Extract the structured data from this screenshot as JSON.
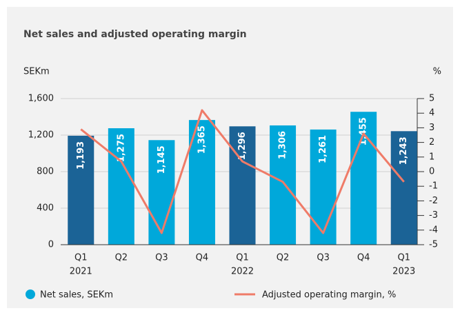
{
  "chart_data": {
    "type": "bar-line",
    "title": "Net sales and adjusted operating margin",
    "y_label": "SEKm",
    "y2_label": "%",
    "categories": [
      "Q1",
      "Q2",
      "Q3",
      "Q4",
      "Q1",
      "Q2",
      "Q3",
      "Q4",
      "Q1"
    ],
    "years": [
      "2021",
      null,
      null,
      null,
      "2022",
      null,
      null,
      null,
      "2023"
    ],
    "series": [
      {
        "name": "Net sales, SEKm",
        "type": "bar",
        "color": "#00a8da",
        "colors": [
          "#1b6396",
          "#00a8da",
          "#00a8da",
          "#00a8da",
          "#1b6396",
          "#00a8da",
          "#00a8da",
          "#00a8da",
          "#1b6396"
        ],
        "values": [
          1193,
          1275,
          1145,
          1365,
          1296,
          1306,
          1261,
          1455,
          1243
        ],
        "value_labels": [
          "1,193",
          "1,275",
          "1,145",
          "1,365",
          "1,296",
          "1,306",
          "1,261",
          "1,455",
          "1,243"
        ]
      },
      {
        "name": "Adjusted operating margin, %",
        "type": "line",
        "axis": "y2",
        "color": "#ef7b68",
        "values": [
          2.9,
          0.7,
          -4.2,
          4.2,
          0.7,
          -0.7,
          -4.2,
          2.6,
          -0.7
        ]
      }
    ],
    "ylim": [
      0,
      1600
    ],
    "yticks": [
      0,
      400,
      800,
      {
        "value": 1200,
        "label": "1,200"
      },
      {
        "value": 1600,
        "label": "1,600"
      }
    ],
    "y2lim": [
      -5,
      5
    ],
    "y2ticks": [
      -5,
      -4,
      -3,
      -2,
      -1,
      0,
      1,
      2,
      3,
      4,
      5
    ],
    "grid": true
  }
}
